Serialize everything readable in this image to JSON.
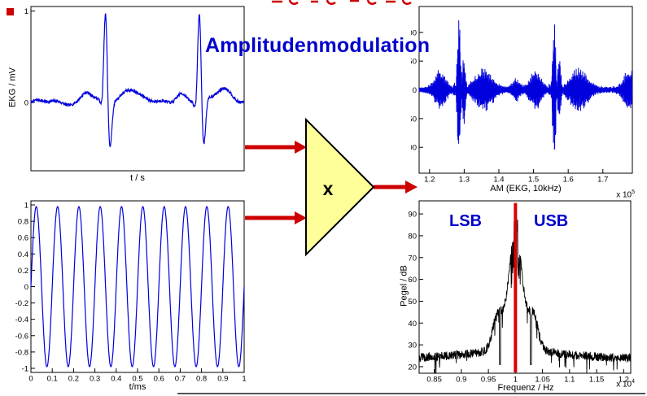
{
  "title": {
    "text": "Amplitudenmodulation"
  },
  "colors": {
    "accent_blue": "#0000cc",
    "signal_blue": "#0000dd",
    "arrow_red": "#cc0000",
    "multiplier_yellow": "#ffff99",
    "trace_black": "#000000"
  },
  "multiplier": {
    "label": "x"
  },
  "labels": {
    "ekg_ylabel": "EKG / mV",
    "ekg_xlabel": "t / s",
    "carrier_xlabel": "t/ms",
    "am_xlabel": "AM (EKG, 10kHz)",
    "am_exp_base": "x 10",
    "am_exp": "5",
    "spec_ylabel": "Pegel / dB",
    "spec_xlabel": "Frequenz / Hz",
    "spec_exp_base": "x 10",
    "spec_exp": "4",
    "lsb": "LSB",
    "usb": "USB"
  },
  "chart_data": [
    {
      "id": "ekg",
      "type": "line",
      "title": "",
      "xlabel": "t / s",
      "ylabel": "EKG / mV",
      "x_range": [
        0,
        1
      ],
      "y_range": [
        -0.75,
        1.05
      ],
      "y_ticks": [
        1,
        0
      ],
      "x_ticks": [],
      "grid": false,
      "line_color": "#0000dd",
      "description": "ECG signal with two heartbeats (QRS complexes), R peak about 1 mV",
      "generator": {
        "kind": "ecg",
        "beats": [
          0.35,
          0.79
        ],
        "r_amp": 1.0,
        "q_amp": -0.1,
        "s_amp": -0.52,
        "p_amp": 0.11,
        "t_amp": 0.16,
        "noise": 0.016,
        "seed": 7
      }
    },
    {
      "id": "carrier",
      "type": "line",
      "title": "",
      "xlabel": "t/ms",
      "ylabel": "",
      "x_range": [
        0,
        1
      ],
      "y_range": [
        -1.05,
        1.05
      ],
      "y_ticks": [
        1,
        0.8,
        0.6,
        0.4,
        0.2,
        0,
        -0.2,
        -0.4,
        -0.6,
        -0.8,
        -1
      ],
      "x_ticks": [
        0,
        0.1,
        0.2,
        0.3,
        0.4,
        0.5,
        0.6,
        0.7,
        0.8,
        0.9,
        1
      ],
      "grid": false,
      "line_color": "#0000dd",
      "description": "10 kHz sinusoidal carrier, 10 cycles over 1 ms, amplitude 1",
      "generator": {
        "kind": "sine",
        "cycles": 10,
        "amplitude": 0.98
      }
    },
    {
      "id": "am",
      "type": "line",
      "title": "",
      "xlabel": "AM (EKG, 10kHz)",
      "ylabel": "",
      "x_scale": "x 10^5",
      "x_range": [
        1.17,
        1.785
      ],
      "y_range": [
        -145,
        145
      ],
      "y_ticks": [
        100,
        50,
        0,
        -50,
        -100
      ],
      "x_ticks": [
        1.2,
        1.3,
        1.4,
        1.5,
        1.6,
        1.7
      ],
      "grid": false,
      "line_color": "#0000dd",
      "description": "Amplitude modulated EKG on 10 kHz carrier, bursts at heartbeats up to about +/-140",
      "generator": {
        "kind": "am",
        "beats": [
          1.285,
          1.56,
          1.83
        ],
        "r_amp": 1.0,
        "q_amp": -0.12,
        "s_amp": -0.5,
        "p_amp": 0.24,
        "t_amp": 0.26,
        "extra_bumps": [
          {
            "c": 1.45,
            "a": 0.12,
            "w": 0.01
          }
        ],
        "scale": 132,
        "noise": 4,
        "seed": 11
      }
    },
    {
      "id": "spectrum",
      "type": "line",
      "title": "",
      "xlabel": "Frequenz / Hz",
      "ylabel": "Pegel / dB",
      "x_scale": "x 10^4",
      "x_range": [
        0.822,
        1.213
      ],
      "y_range": [
        17,
        96
      ],
      "y_ticks": [
        90,
        80,
        70,
        60,
        50,
        40,
        30,
        20
      ],
      "x_ticks": [
        0.85,
        0.9,
        0.95,
        1,
        1.05,
        1.1,
        1.15,
        1.2
      ],
      "grid": false,
      "line_color": "#000000",
      "carrier_marker": {
        "x": 1.0,
        "top_db": 95,
        "color": "#dd0000"
      },
      "annotations": [
        "LSB",
        "USB"
      ],
      "description": "AM spectrum around 10 kHz carrier: peak 95 dB at 1e4 Hz, sidebands LSB/USB, noise floor about 23 dB",
      "generator": {
        "kind": "spectrum",
        "center": 1.0,
        "peak_db": 95,
        "floor_db": 23,
        "lobe_offset": 0.034,
        "lobe_db": 13,
        "seed": 5
      }
    }
  ]
}
